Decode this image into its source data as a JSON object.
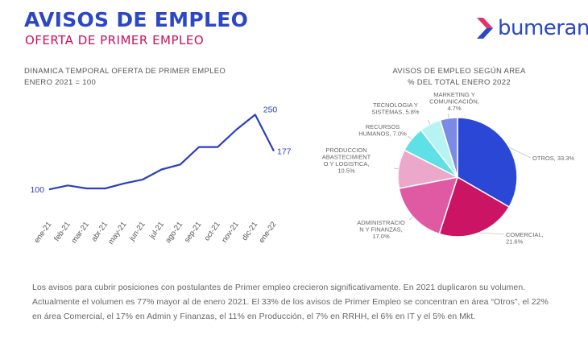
{
  "header": {
    "title": "AVISOS DE EMPLEO",
    "subtitle": "OFERTA DE PRIMER EMPLEO",
    "title_color": "#2b47c6",
    "subtitle_color": "#c8105f"
  },
  "logo": {
    "text": "bumeran",
    "icon": "bumeran-chevron-icon",
    "text_color": "#2b47c6",
    "icon_color_top": "#e8306b",
    "icon_color_bottom": "#2b47c6"
  },
  "chart_data": [
    {
      "type": "line",
      "title_lines": [
        "DINAMICA TEMPORAL OFERTA DE PRIMER EMPLEO",
        "ENERO 2021 = 100"
      ],
      "categories": [
        "ene-21",
        "feb-21",
        "mar-21",
        "abr-21",
        "may-21",
        "jun-21",
        "jul-21",
        "ago-21",
        "sep-21",
        "oct-21",
        "nov-21",
        "dic-21",
        "ene-22"
      ],
      "values": [
        100,
        108,
        102,
        102,
        112,
        120,
        140,
        150,
        185,
        185,
        220,
        250,
        177
      ],
      "data_labels": [
        {
          "index": 0,
          "text": "100"
        },
        {
          "index": 11,
          "text": "250"
        },
        {
          "index": 12,
          "text": "177"
        }
      ],
      "ylim": [
        60,
        270
      ],
      "grid": false,
      "line_color": "#2b3fc0",
      "label_color": "#2b3fc0"
    },
    {
      "type": "pie",
      "title_lines": [
        "AVISOS DE EMPLEO SEGÚN AREA",
        "% DEL TOTAL ENERO 2022"
      ],
      "slices": [
        {
          "label_lines": [
            "OTROS, 33.3%"
          ],
          "value": 33.3,
          "color": "#2b47d6"
        },
        {
          "label_lines": [
            "COMERCIAL,",
            "21.6%"
          ],
          "value": 21.6,
          "color": "#cc1464"
        },
        {
          "label_lines": [
            "ADMINISTRACIO",
            "N Y FINANZAS,",
            "17.0%"
          ],
          "value": 17.0,
          "color": "#e05aa3"
        },
        {
          "label_lines": [
            "PRODUCCION",
            "ABASTECIMIENT",
            "O Y LOGISTICA,",
            "10.5%"
          ],
          "value": 10.5,
          "color": "#eba8ca"
        },
        {
          "label_lines": [
            "RECURSOS",
            "HUMANOS, 7.0%"
          ],
          "value": 7.0,
          "color": "#5fe0e6"
        },
        {
          "label_lines": [
            "TECNOLOGIA Y",
            "SISTEMAS, 5.8%"
          ],
          "value": 5.8,
          "color": "#b8f3f4"
        },
        {
          "label_lines": [
            "MARKETING Y",
            "COMUNICACIÓN,",
            "4.7%"
          ],
          "value": 4.7,
          "color": "#7b8ae6"
        }
      ]
    }
  ],
  "footnote": {
    "lines": [
      "Los avisos para cubrir posiciones con postulantes de Primer empleo crecieron significativamente. En 2021 duplicaron su volumen.",
      "Actualmente el volumen es 77% mayor al de enero 2021. El 33% de los avisos de Primer Empleo se concentran en área “Otros”, el 22%",
      "en área Comercial, el 17% en Admin y Finanzas, el 11% en Producción, el 7% en RRHH, el 6% en IT y el 5% en Mkt."
    ]
  }
}
